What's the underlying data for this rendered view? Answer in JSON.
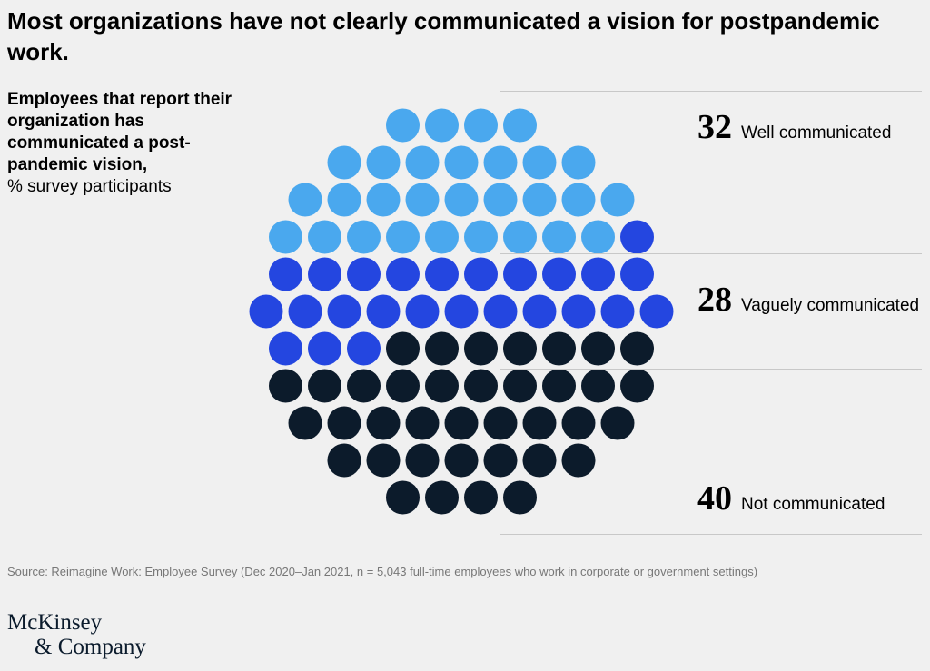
{
  "title": "Most organizations have not clearly communicated a vision for postpandemic work.",
  "subtitle": {
    "bold": "Employees that report their organization has communicated a post-pandemic vision,",
    "unit": "% survey participants"
  },
  "colors": {
    "well": "#4aa8ee",
    "vaguely": "#2446e0",
    "not": "#0c1b2b",
    "background": "#f0f0f0"
  },
  "chart_data": {
    "type": "pie",
    "categories": [
      "Well communicated",
      "Vaguely communicated",
      "Not communicated"
    ],
    "values": [
      32,
      28,
      40
    ],
    "unit": "% survey participants"
  },
  "source": "Source: Reimagine Work: Employee Survey (Dec 2020–Jan 2021, n = 5,043 full-time employees who work in corporate or government settings)",
  "logo": {
    "line1": "McKinsey",
    "line2": "& Company"
  }
}
